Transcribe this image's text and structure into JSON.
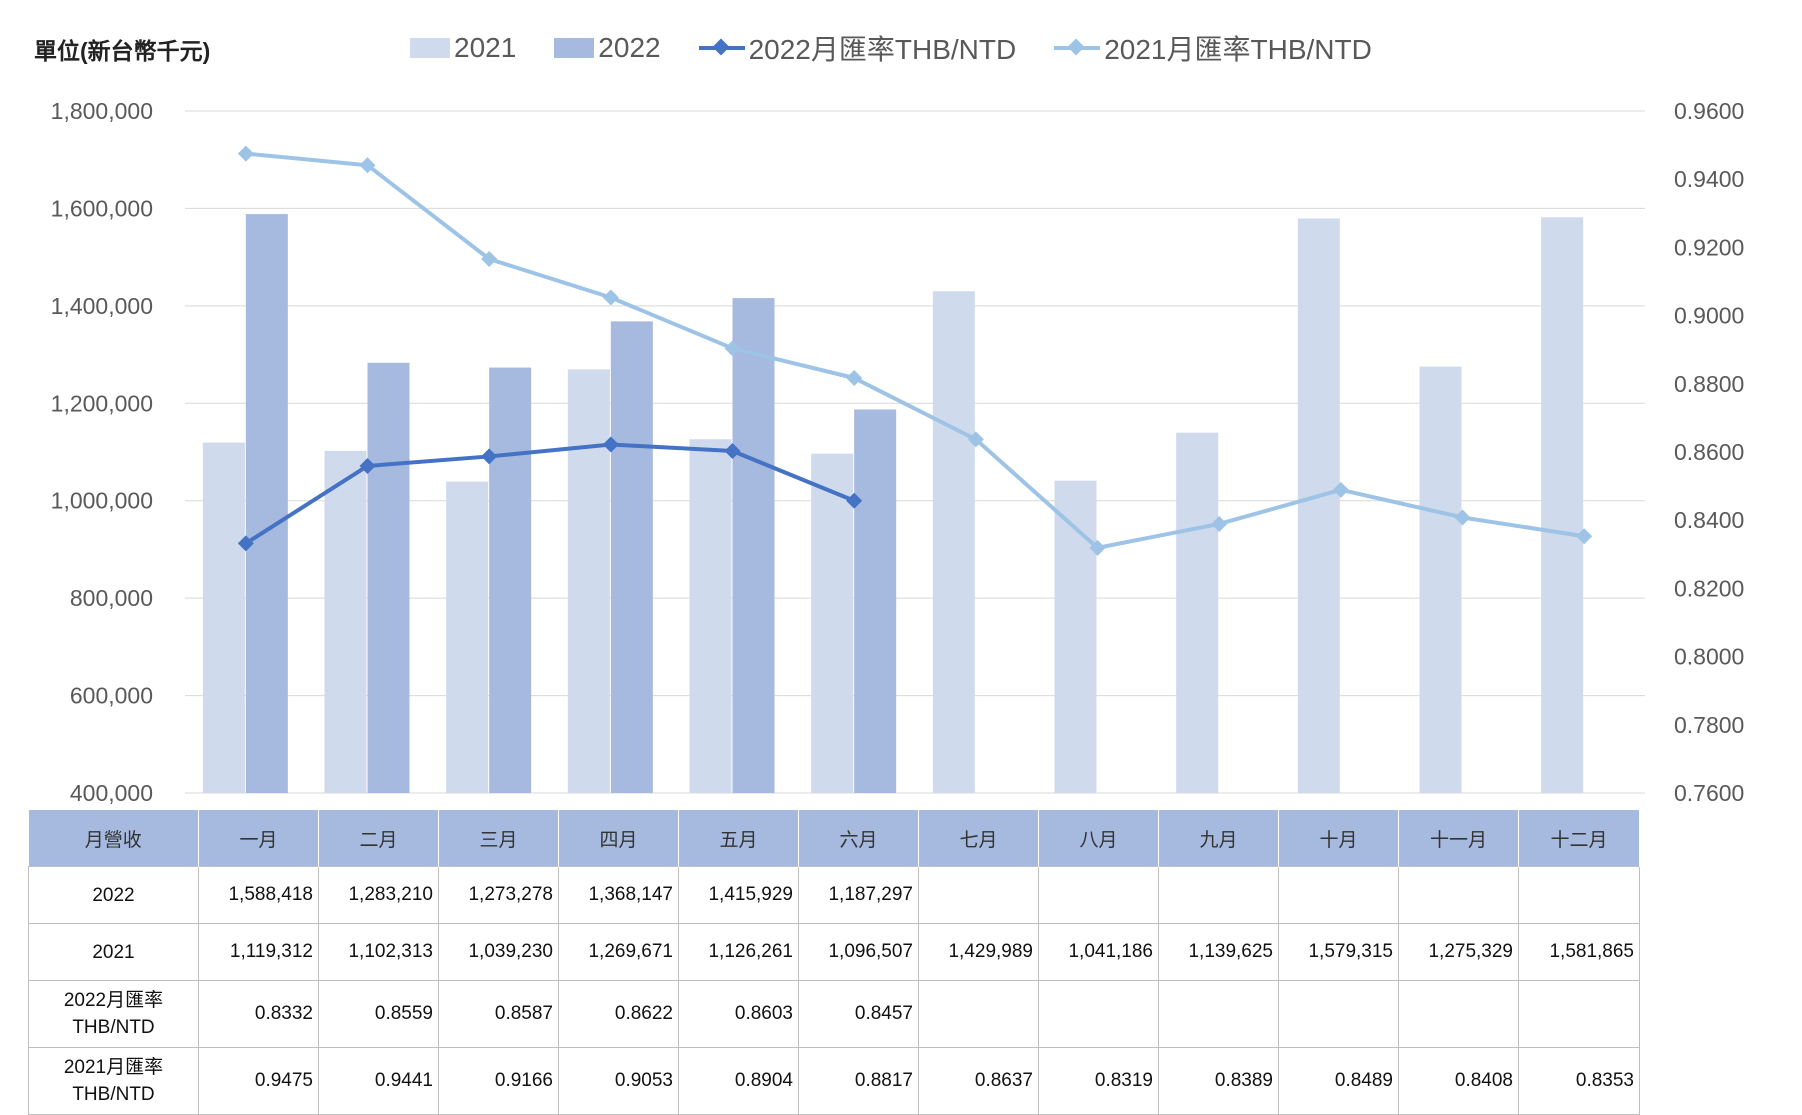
{
  "unit_label": "單位(新台幣千元)",
  "legend": [
    {
      "label": "2021",
      "type": "bar",
      "color": "#cfdaec"
    },
    {
      "label": "2022",
      "type": "bar",
      "color": "#a6b9de"
    },
    {
      "label": "2022月匯率THB/NTD",
      "type": "line",
      "color": "#4472c4"
    },
    {
      "label": "2021月匯率THB/NTD",
      "type": "line",
      "color": "#9dc3e6"
    }
  ],
  "chart_data": {
    "type": "bar",
    "categories": [
      "一月",
      "二月",
      "三月",
      "四月",
      "五月",
      "六月",
      "七月",
      "八月",
      "九月",
      "十月",
      "十一月",
      "十二月"
    ],
    "series": [
      {
        "name": "2021",
        "type": "bar",
        "axis": "left",
        "color": "#cfdaec",
        "values": [
          1119312,
          1102313,
          1039230,
          1269671,
          1126261,
          1096507,
          1429989,
          1041186,
          1139625,
          1579315,
          1275329,
          1581865
        ]
      },
      {
        "name": "2022",
        "type": "bar",
        "axis": "left",
        "color": "#a6b9de",
        "values": [
          1588418,
          1283210,
          1273278,
          1368147,
          1415929,
          1187297,
          null,
          null,
          null,
          null,
          null,
          null
        ]
      },
      {
        "name": "2022月匯率THB/NTD",
        "type": "line",
        "axis": "right",
        "color": "#4472c4",
        "values": [
          0.8332,
          0.8559,
          0.8587,
          0.8622,
          0.8603,
          0.8457,
          null,
          null,
          null,
          null,
          null,
          null
        ]
      },
      {
        "name": "2021月匯率THB/NTD",
        "type": "line",
        "axis": "right",
        "color": "#9dc3e6",
        "values": [
          0.9475,
          0.9441,
          0.9166,
          0.9053,
          0.8904,
          0.8817,
          0.8637,
          0.8319,
          0.8389,
          0.8489,
          0.8408,
          0.8353
        ]
      }
    ],
    "y_left": {
      "min": 400000,
      "max": 1800000,
      "step": 200000,
      "tick_labels": [
        "400,000",
        "600,000",
        "800,000",
        "1,000,000",
        "1,200,000",
        "1,400,000",
        "1,600,000",
        "1,800,000"
      ]
    },
    "y_right": {
      "min": 0.76,
      "max": 0.96,
      "step": 0.02,
      "tick_labels": [
        "0.7600",
        "0.7800",
        "0.8000",
        "0.8200",
        "0.8400",
        "0.8600",
        "0.8800",
        "0.9000",
        "0.9200",
        "0.9400",
        "0.9600"
      ]
    },
    "grid": true,
    "legend_position": "top"
  },
  "table": {
    "header_label": "月營收",
    "months": [
      "一月",
      "二月",
      "三月",
      "四月",
      "五月",
      "六月",
      "七月",
      "八月",
      "九月",
      "十月",
      "十一月",
      "十二月"
    ],
    "rows": [
      {
        "label": "2022",
        "values": [
          "1,588,418",
          "1,283,210",
          "1,273,278",
          "1,368,147",
          "1,415,929",
          "1,187,297",
          "",
          "",
          "",
          "",
          "",
          ""
        ]
      },
      {
        "label": "2021",
        "values": [
          "1,119,312",
          "1,102,313",
          "1,039,230",
          "1,269,671",
          "1,126,261",
          "1,096,507",
          "1,429,989",
          "1,041,186",
          "1,139,625",
          "1,579,315",
          "1,275,329",
          "1,581,865"
        ]
      },
      {
        "label_line1": "2022月匯率",
        "label_line2": "THB/NTD",
        "values": [
          "0.8332",
          "0.8559",
          "0.8587",
          "0.8622",
          "0.8603",
          "0.8457",
          "",
          "",
          "",
          "",
          "",
          ""
        ]
      },
      {
        "label_line1": "2021月匯率",
        "label_line2": "THB/NTD",
        "values": [
          "0.9475",
          "0.9441",
          "0.9166",
          "0.9053",
          "0.8904",
          "0.8817",
          "0.8637",
          "0.8319",
          "0.8389",
          "0.8489",
          "0.8408",
          "0.8353"
        ]
      }
    ]
  }
}
